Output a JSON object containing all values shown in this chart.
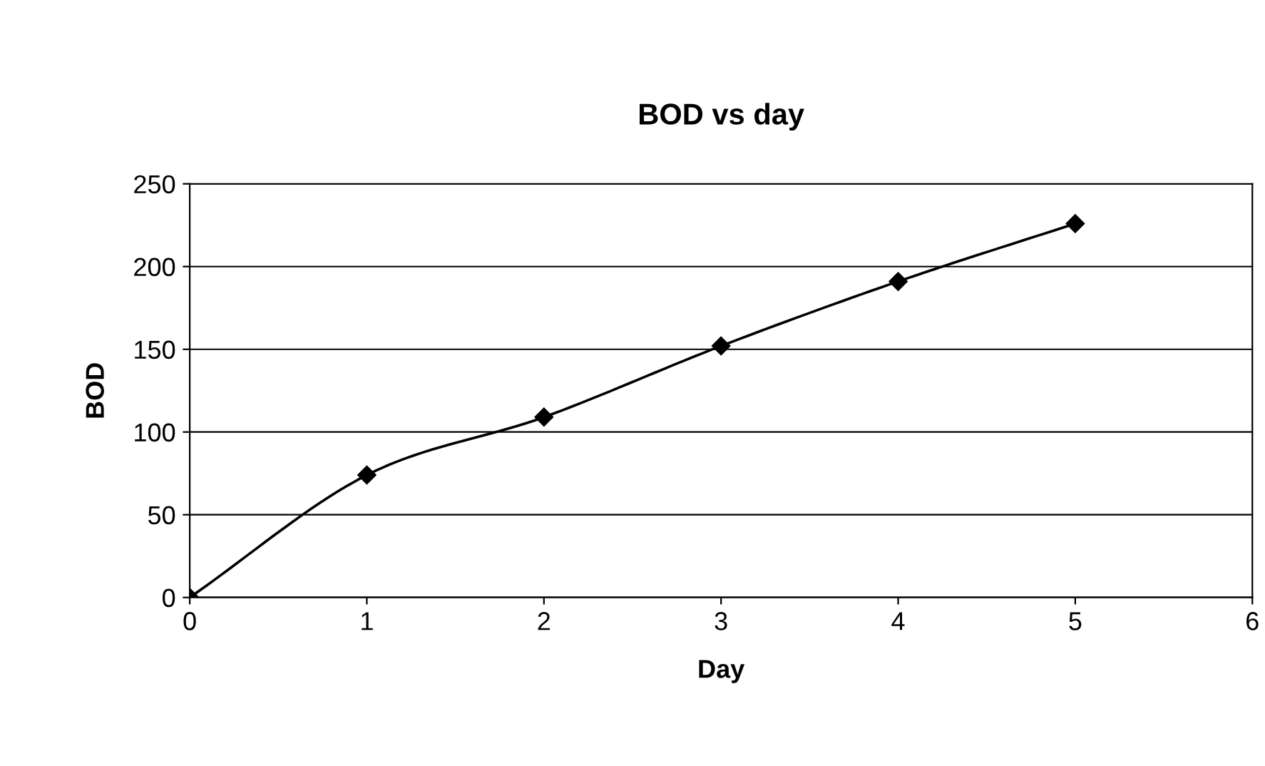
{
  "chart_data": {
    "type": "line",
    "title": "BOD vs day",
    "xlabel": "Day",
    "ylabel": "BOD",
    "x": [
      0,
      1,
      2,
      3,
      4,
      5
    ],
    "series": [
      {
        "color": "#000000",
        "values": [
          0,
          74,
          109,
          152,
          191,
          226
        ]
      }
    ],
    "xlim": [
      0,
      6
    ],
    "xticks": [
      0,
      1,
      2,
      3,
      4,
      5,
      6
    ],
    "ylim": [
      0,
      250
    ],
    "yticks": [
      0,
      50,
      100,
      150,
      200,
      250
    ],
    "grid": "y",
    "marker": "diamond",
    "line_style": "solid",
    "legend": false
  }
}
